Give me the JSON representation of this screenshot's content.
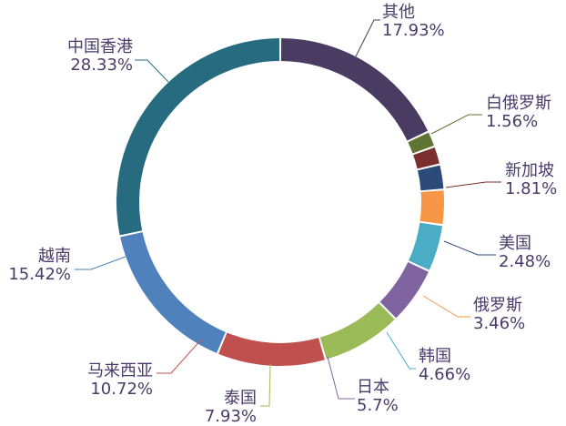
{
  "chart_data": {
    "type": "pie",
    "donut": true,
    "title": "",
    "legend": "none",
    "slices": [
      {
        "name": "其他",
        "value": 17.93,
        "label": "17.93%",
        "color": "#4a3b63"
      },
      {
        "name": "白俄罗斯",
        "value": 1.56,
        "label": "1.56%",
        "color": "#5f7430"
      },
      {
        "name": "新加坡",
        "value": 1.81,
        "label": "1.81%",
        "color": "#7a2e2e"
      },
      {
        "name": "美国",
        "value": 2.48,
        "label": "2.48%",
        "color": "#2b4a78"
      },
      {
        "name": "俄罗斯",
        "value": 3.46,
        "label": "3.46%",
        "color": "#f79646"
      },
      {
        "name": "韩国",
        "value": 4.66,
        "label": "4.66%",
        "color": "#4bacc6"
      },
      {
        "name": "日本",
        "value": 5.7,
        "label": "5.7%",
        "color": "#8064a2"
      },
      {
        "name": "泰国",
        "value": 7.93,
        "label": "7.93%",
        "color": "#9bbb59"
      },
      {
        "name": "马来西亚",
        "value": 10.72,
        "label": "10.72%",
        "color": "#c0504d"
      },
      {
        "name": "越南",
        "value": 15.42,
        "label": "15.42%",
        "color": "#4f81bd"
      },
      {
        "name": "中国香港",
        "value": 28.33,
        "label": "28.33%",
        "color": "#266b7f"
      }
    ]
  }
}
